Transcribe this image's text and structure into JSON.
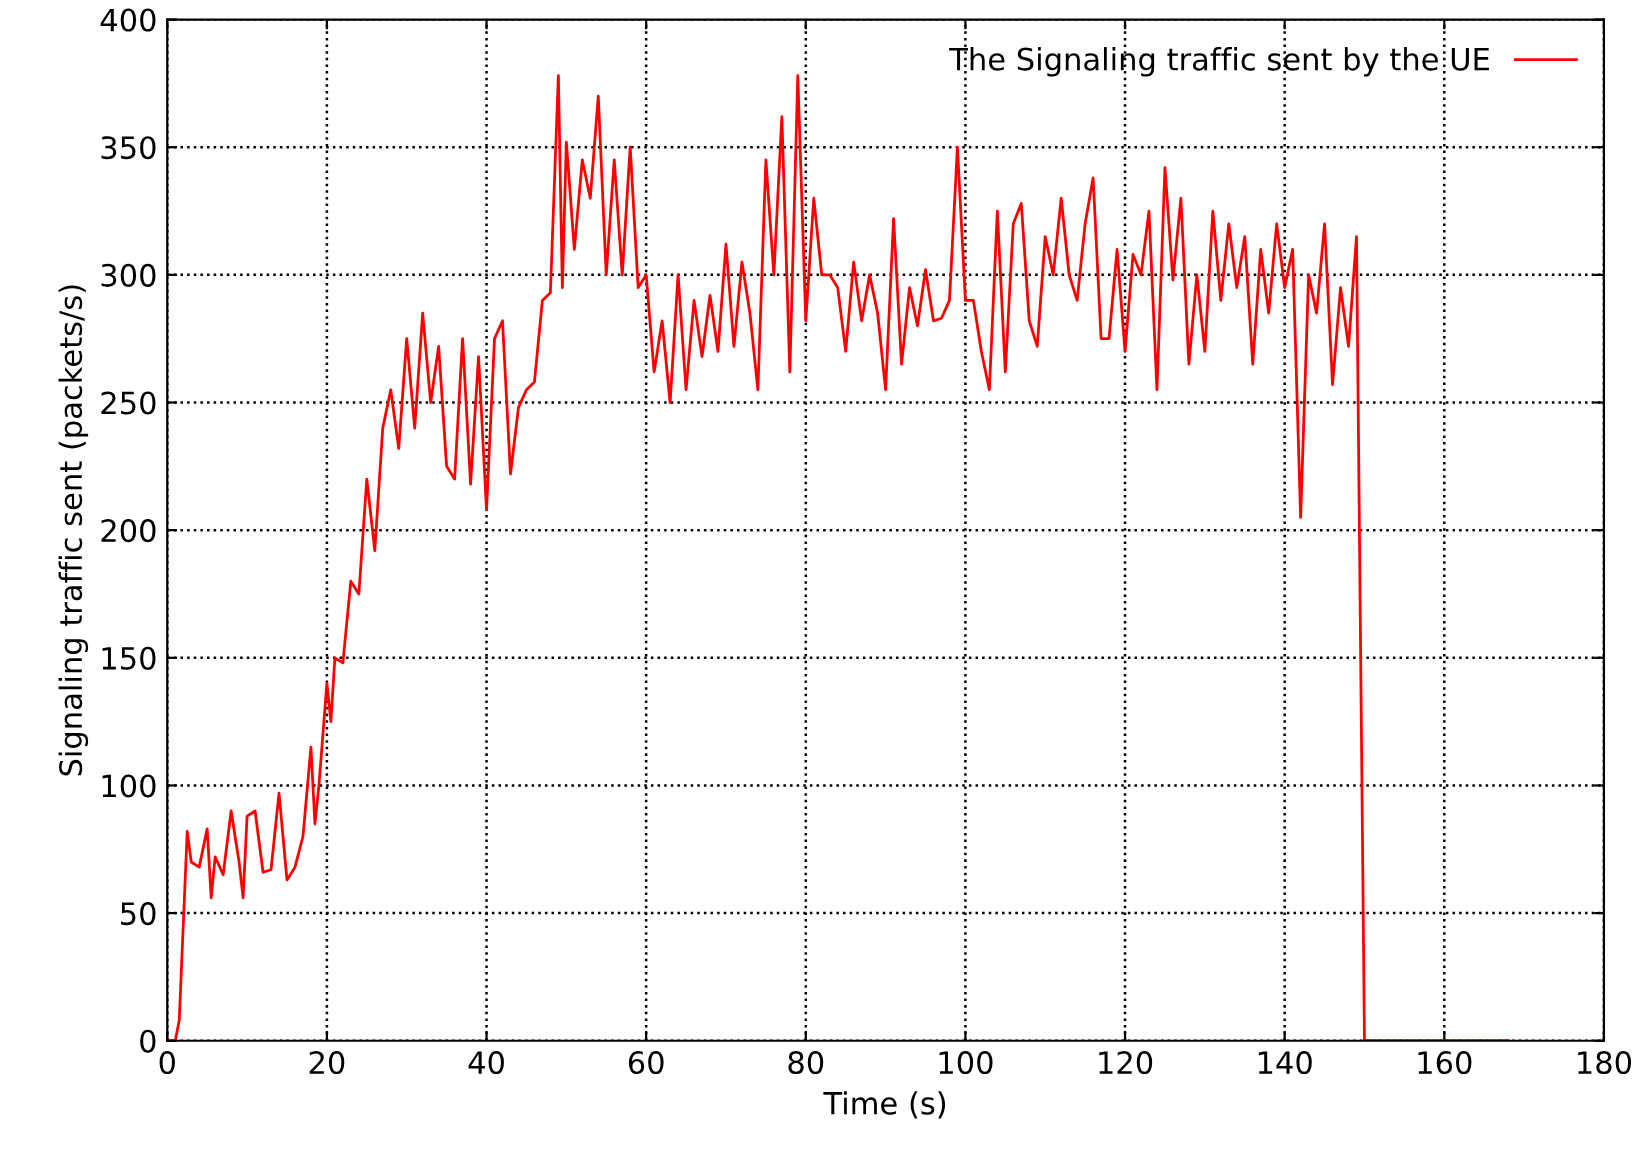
{
  "chart_data": {
    "type": "line",
    "xlabel": "Time (s)",
    "ylabel": "Signaling traffic sent (packets/s)",
    "xlim": [
      0,
      180
    ],
    "xticks": [
      0,
      20,
      40,
      60,
      80,
      100,
      120,
      140,
      160,
      180
    ],
    "ylim": [
      0,
      400
    ],
    "yticks": [
      0,
      50,
      100,
      150,
      200,
      250,
      300,
      350,
      400
    ],
    "grid": true,
    "legend": "top right",
    "line_style": "solid",
    "series": [
      {
        "name": "The Signaling traffic sent by the UE",
        "color": "#ff0000",
        "x": [
          0,
          1,
          1.5,
          2.5,
          3,
          4,
          5,
          5.5,
          6,
          7,
          8,
          9,
          9.5,
          10,
          11,
          12,
          13,
          14,
          15,
          16,
          17,
          18,
          18.5,
          19,
          20,
          20.5,
          21,
          22,
          23,
          24,
          25,
          26,
          27,
          28,
          29,
          30,
          31,
          32,
          33,
          34,
          35,
          36,
          37,
          38,
          39,
          40,
          41,
          42,
          43,
          44,
          45,
          46,
          47,
          48,
          49,
          49.5,
          50,
          51,
          52,
          53,
          54,
          55,
          56,
          57,
          58,
          59,
          60,
          61,
          62,
          63,
          64,
          65,
          66,
          67,
          68,
          69,
          70,
          71,
          72,
          73,
          74,
          75,
          76,
          77,
          78,
          79,
          80,
          81,
          82,
          83,
          84,
          85,
          86,
          87,
          88,
          89,
          90,
          91,
          92,
          93,
          94,
          95,
          96,
          97,
          98,
          99,
          100,
          101,
          102,
          103,
          104,
          105,
          106,
          107,
          108,
          109,
          110,
          111,
          112,
          113,
          114,
          115,
          116,
          117,
          118,
          119,
          120,
          121,
          122,
          123,
          124,
          125,
          126,
          127,
          128,
          129,
          130,
          131,
          132,
          133,
          134,
          135,
          136,
          137,
          138,
          139,
          140,
          141,
          142,
          143,
          144,
          145,
          146,
          147,
          148,
          149,
          150,
          168
        ],
        "values": [
          0,
          0,
          8,
          82,
          70,
          68,
          83,
          56,
          72,
          65,
          90,
          70,
          56,
          88,
          90,
          66,
          67,
          97,
          63,
          68,
          80,
          115,
          85,
          100,
          140,
          125,
          150,
          148,
          180,
          175,
          220,
          192,
          240,
          255,
          232,
          275,
          240,
          285,
          250,
          272,
          225,
          220,
          275,
          218,
          268,
          208,
          275,
          282,
          222,
          248,
          255,
          258,
          290,
          293,
          378,
          295,
          352,
          310,
          345,
          330,
          370,
          300,
          345,
          300,
          350,
          295,
          300,
          262,
          282,
          250,
          300,
          255,
          290,
          268,
          292,
          270,
          312,
          272,
          305,
          285,
          255,
          345,
          300,
          362,
          262,
          378,
          282,
          330,
          300,
          300,
          295,
          270,
          305,
          282,
          300,
          285,
          255,
          322,
          265,
          295,
          280,
          302,
          282,
          283,
          290,
          350,
          290,
          290,
          270,
          255,
          325,
          262,
          320,
          328,
          282,
          272,
          315,
          300,
          330,
          300,
          290,
          320,
          338,
          275,
          275,
          310,
          270,
          308,
          300,
          325,
          255,
          342,
          298,
          330,
          265,
          300,
          270,
          325,
          290,
          320,
          295,
          315,
          265,
          310,
          285,
          320,
          295,
          310,
          205,
          300,
          285,
          320,
          257,
          295,
          272,
          315,
          0,
          0
        ]
      }
    ]
  }
}
